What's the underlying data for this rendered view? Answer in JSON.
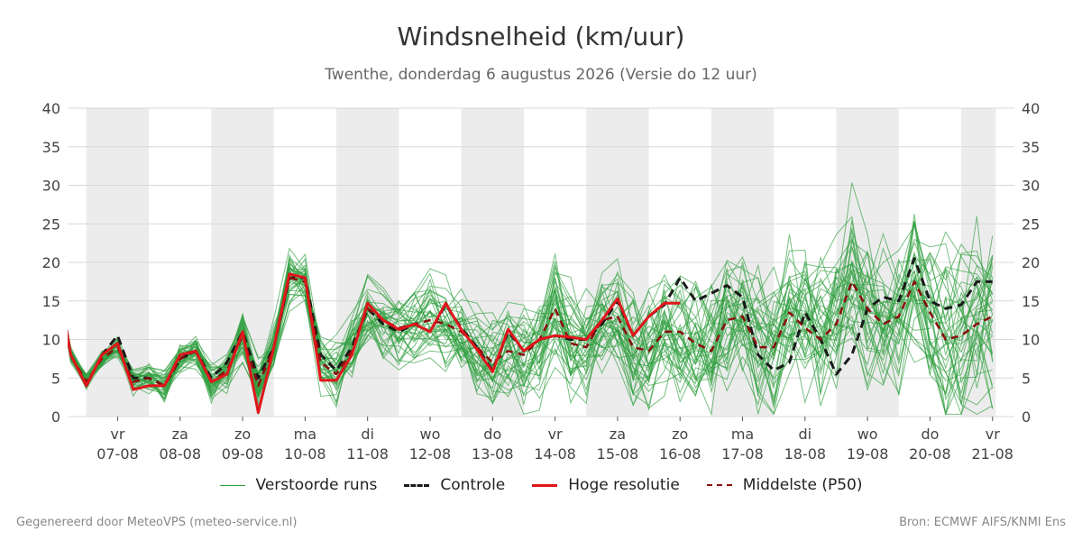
{
  "title": "Windsnelheid (km/uur)",
  "subtitle": "Twenthe, donderdag  6 augustus 2026 (Versie do 12 uur)",
  "footer_left": "Gegenereerd door MeteoVPS (meteo-service.nl)",
  "footer_right": "Bron: ECMWF AIFS/KNMI Ens",
  "colors": {
    "members": "#2e9e3e",
    "control": "#1a1a1a",
    "high_res": "#e0161b",
    "median": "#8b0d0d",
    "weekend_band": "#ececec",
    "grid": "#d8d8d8"
  },
  "legend": [
    {
      "key": "members",
      "label": "Verstoorde runs"
    },
    {
      "key": "control",
      "label": "Controle"
    },
    {
      "key": "high_res",
      "label": "Hoge resolutie"
    },
    {
      "key": "median",
      "label": "Middelste (P50)"
    }
  ],
  "chart_data": {
    "type": "line",
    "title": "Windsnelheid (km/uur)",
    "ylim": [
      0,
      40
    ],
    "yticks": [
      0,
      5,
      10,
      15,
      20,
      25,
      30,
      35,
      40
    ],
    "x_unit": "days since Thu 06-08 00:00",
    "xlim": [
      6.7,
      21.85
    ],
    "x_days": [
      {
        "day": "vr",
        "date": "07-08"
      },
      {
        "day": "za",
        "date": "08-08"
      },
      {
        "day": "zo",
        "date": "09-08"
      },
      {
        "day": "ma",
        "date": "10-08"
      },
      {
        "day": "di",
        "date": "11-08"
      },
      {
        "day": "wo",
        "date": "12-08"
      },
      {
        "day": "do",
        "date": "13-08"
      },
      {
        "day": "vr",
        "date": "14-08"
      },
      {
        "day": "za",
        "date": "15-08"
      },
      {
        "day": "zo",
        "date": "16-08"
      },
      {
        "day": "ma",
        "date": "17-08"
      },
      {
        "day": "di",
        "date": "18-08"
      },
      {
        "day": "wo",
        "date": "19-08"
      },
      {
        "day": "do",
        "date": "20-08"
      },
      {
        "day": "vr",
        "date": "21-08"
      }
    ],
    "shaded_bands": [
      [
        7.0,
        8.0
      ],
      [
        9.0,
        10.0
      ],
      [
        11.0,
        12.0
      ],
      [
        13.0,
        14.0
      ],
      [
        15.0,
        16.0
      ],
      [
        17.0,
        18.0
      ],
      [
        19.0,
        20.0
      ],
      [
        21.0,
        21.55
      ]
    ],
    "grid": true,
    "legend_position": "bottom",
    "series": [
      {
        "name": "Controle",
        "style": "dashed",
        "color": "#1a1a1a",
        "x": [
          6.5,
          6.75,
          7.0,
          7.25,
          7.5,
          7.75,
          8.0,
          8.25,
          8.5,
          8.75,
          9.0,
          9.25,
          9.5,
          9.75,
          10.0,
          10.25,
          10.5,
          10.75,
          11.0,
          11.25,
          11.5,
          11.75,
          12.0,
          12.25,
          12.5,
          12.75,
          13.0,
          13.25,
          13.5,
          13.75,
          14.0,
          14.25,
          14.5,
          14.75,
          15.0,
          15.25,
          15.5,
          15.75,
          16.0,
          16.25,
          16.5,
          16.75,
          17.0,
          17.25,
          17.5,
          17.75,
          18.0,
          18.25,
          18.5,
          18.75,
          19.0,
          19.25,
          19.5,
          19.75,
          20.0,
          20.25,
          20.5,
          20.75,
          21.0,
          21.25,
          21.5
        ],
        "y": [
          20,
          8,
          4,
          8,
          10.5,
          5,
          5,
          4,
          7.5,
          8.5,
          5,
          7,
          11,
          5,
          9,
          18,
          18,
          8,
          6,
          9,
          14,
          12,
          11,
          12,
          11,
          14.5,
          11.5,
          9,
          6,
          11,
          8.5,
          10,
          10.5,
          10,
          10,
          12,
          15,
          10.5,
          13,
          14.5,
          18,
          15,
          16,
          17,
          15.5,
          8,
          6,
          7,
          13.5,
          10,
          5.5,
          8,
          14,
          15.5,
          15,
          20.5,
          15,
          14,
          14.5,
          17.5,
          17.5
        ]
      },
      {
        "name": "Hoge resolutie",
        "style": "solid",
        "color": "#e0161b",
        "x": [
          6.5,
          6.75,
          7.0,
          7.25,
          7.5,
          7.75,
          8.0,
          8.25,
          8.5,
          8.75,
          9.0,
          9.25,
          9.5,
          9.75,
          10.0,
          10.25,
          10.5,
          10.75,
          11.0,
          11.25,
          11.5,
          11.75,
          12.0,
          12.25,
          12.5,
          12.75,
          13.0,
          13.25,
          13.5,
          13.75,
          14.0,
          14.25,
          14.5,
          14.75,
          15.0,
          15.25,
          15.5,
          15.75,
          16.0,
          16.25,
          16.5
        ],
        "y": [
          19.5,
          8,
          4,
          8,
          9.5,
          3.5,
          4,
          4,
          8,
          8.5,
          4.5,
          5.5,
          11,
          0.5,
          9,
          18.5,
          18,
          4.7,
          4.7,
          8,
          14.7,
          12.5,
          11.3,
          12,
          11,
          14.7,
          11.3,
          8.7,
          5.8,
          11.3,
          8.5,
          10,
          10.5,
          10.3,
          10,
          12.5,
          15.3,
          10.5,
          13,
          14.7,
          14.7
        ]
      },
      {
        "name": "Middelste (P50)",
        "style": "dashed",
        "color": "#8b0d0d",
        "x": [
          6.5,
          6.75,
          7.0,
          7.25,
          7.5,
          7.75,
          8.0,
          8.25,
          8.5,
          8.75,
          9.0,
          9.25,
          9.5,
          9.75,
          10.0,
          10.25,
          10.5,
          10.75,
          11.0,
          11.25,
          11.5,
          11.75,
          12.0,
          12.25,
          12.5,
          12.75,
          13.0,
          13.25,
          13.5,
          13.75,
          14.0,
          14.25,
          14.5,
          14.75,
          15.0,
          15.25,
          15.5,
          15.75,
          16.0,
          16.25,
          16.5,
          16.75,
          17.0,
          17.25,
          17.5,
          17.75,
          18.0,
          18.25,
          18.5,
          18.75,
          19.0,
          19.25,
          19.5,
          19.75,
          20.0,
          20.25,
          20.5,
          20.75,
          21.0,
          21.25,
          21.5
        ],
        "y": [
          19,
          8,
          4.5,
          7.5,
          9,
          4.5,
          5,
          4,
          7.5,
          8.5,
          4.5,
          6,
          10.5,
          4,
          9,
          18,
          17.5,
          7,
          5.5,
          8.5,
          14,
          12.5,
          11.5,
          12,
          12.5,
          12,
          11,
          9,
          7,
          8.5,
          8,
          10,
          14,
          9.5,
          9,
          12.5,
          13,
          9,
          8.5,
          11,
          11,
          9.5,
          8.5,
          12.5,
          13,
          9,
          9,
          13.5,
          11.5,
          10,
          12,
          17.5,
          14,
          12,
          13,
          17.5,
          13.5,
          10,
          10.5,
          12,
          13
        ]
      }
    ]
  }
}
